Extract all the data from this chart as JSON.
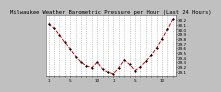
{
  "title": "Milwaukee Weather Barometric Pressure per Hour (Last 24 Hours)",
  "background_color": "#c0c0c0",
  "plot_bg_color": "#ffffff",
  "grid_color": "#888888",
  "line_color": "#dd0000",
  "marker_color": "#000000",
  "y_values": [
    30.12,
    30.02,
    29.88,
    29.72,
    29.58,
    29.42,
    29.3,
    29.22,
    29.18,
    29.3,
    29.15,
    29.08,
    29.05,
    29.18,
    29.35,
    29.25,
    29.12,
    29.2,
    29.32,
    29.45,
    29.6,
    29.8,
    30.0,
    30.22
  ],
  "ylim": [
    29.0,
    30.3
  ],
  "yticks": [
    29.1,
    29.2,
    29.3,
    29.4,
    29.5,
    29.6,
    29.7,
    29.8,
    29.9,
    30.0,
    30.1,
    30.2
  ],
  "x_labels": [
    "1",
    "",
    "",
    "",
    "5",
    "",
    "",
    "",
    "",
    "10",
    "",
    "",
    "1",
    "",
    "",
    "",
    "5",
    "",
    "",
    "",
    "",
    "10",
    "",
    ""
  ],
  "title_fontsize": 4.0,
  "tick_fontsize": 3.0,
  "line_width": 0.7,
  "marker_size": 1.2,
  "grid_linewidth": 0.4,
  "n_points": 24
}
